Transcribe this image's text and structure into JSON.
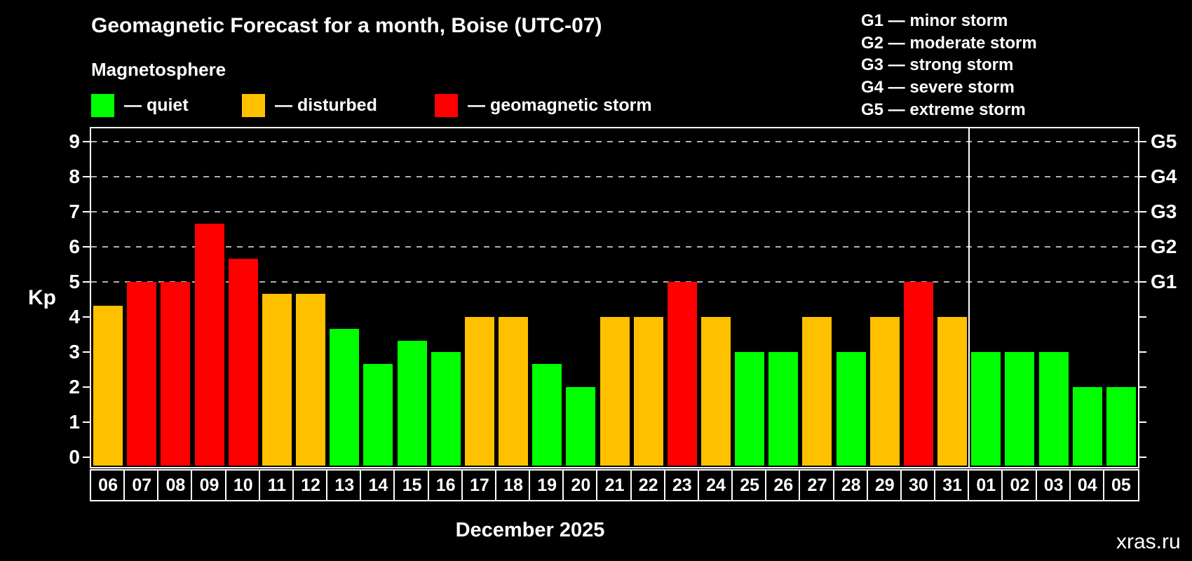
{
  "title": "Geomagnetic Forecast for a month, Boise (UTC-07)",
  "subtitle": "Magnetosphere",
  "legend": {
    "quiet_label": "— quiet",
    "disturbed_label": "— disturbed",
    "storm_label": "— geomagnetic storm"
  },
  "g_legend": [
    "G1 — minor storm",
    "G2 — moderate storm",
    "G3 — strong storm",
    "G4 — severe storm",
    "G5 — extreme storm"
  ],
  "colors": {
    "quiet": "#00FF00",
    "disturbed": "#FFC000",
    "storm": "#FF0000",
    "grid": "#b0b0b0",
    "axis": "#ffffff",
    "watermark": "#8a8a8a",
    "background": "#000000"
  },
  "y_axis": {
    "label": "Kp",
    "ticks": [
      0,
      1,
      2,
      3,
      4,
      5,
      6,
      7,
      8,
      9
    ]
  },
  "right_axis": {
    "labels": [
      {
        "value": 5,
        "label": "G1"
      },
      {
        "value": 6,
        "label": "G2"
      },
      {
        "value": 7,
        "label": "G3"
      },
      {
        "value": 8,
        "label": "G4"
      },
      {
        "value": 9,
        "label": "G5"
      }
    ]
  },
  "x_axis": {
    "month_label": "December 2025",
    "separator_after_index": 25
  },
  "watermark": "xras.ru",
  "chart_data": {
    "type": "bar",
    "title": "Geomagnetic Forecast for a month, Boise (UTC-07)",
    "ylabel": "Kp",
    "ylim": [
      0,
      9.4
    ],
    "grid_values": [
      5,
      6,
      7,
      8,
      9
    ],
    "legend_position": "top",
    "categories": [
      "06",
      "07",
      "08",
      "09",
      "10",
      "11",
      "12",
      "13",
      "14",
      "15",
      "16",
      "17",
      "18",
      "19",
      "20",
      "21",
      "22",
      "23",
      "24",
      "25",
      "26",
      "27",
      "28",
      "29",
      "30",
      "31",
      "01",
      "02",
      "03",
      "04",
      "05"
    ],
    "values": [
      4.33,
      5,
      5,
      6.67,
      5.67,
      4.67,
      4.67,
      3.67,
      2.67,
      3.33,
      3,
      4,
      4,
      2.67,
      2,
      4,
      4,
      5,
      4,
      3,
      3,
      4,
      3,
      4,
      5,
      4,
      3,
      3,
      3,
      2,
      2
    ],
    "levels": [
      "disturbed",
      "storm",
      "storm",
      "storm",
      "storm",
      "disturbed",
      "disturbed",
      "quiet",
      "quiet",
      "quiet",
      "quiet",
      "disturbed",
      "disturbed",
      "quiet",
      "quiet",
      "disturbed",
      "disturbed",
      "storm",
      "disturbed",
      "quiet",
      "quiet",
      "disturbed",
      "quiet",
      "disturbed",
      "storm",
      "disturbed",
      "quiet",
      "quiet",
      "quiet",
      "quiet",
      "quiet"
    ]
  }
}
